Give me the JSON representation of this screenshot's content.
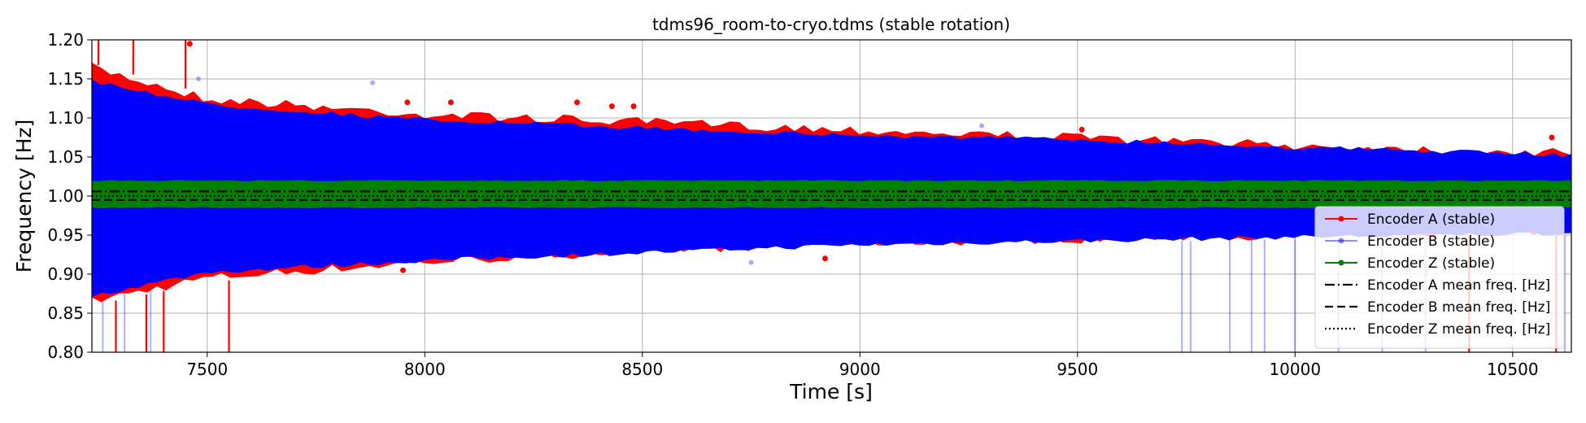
{
  "chart_data": {
    "type": "line",
    "title": "tdms96_room-to-cryo.tdms (stable rotation)",
    "xlabel": "Time [s]",
    "ylabel": "Frequency [Hz]",
    "xlim": [
      7235,
      10635
    ],
    "ylim": [
      0.8,
      1.2
    ],
    "xticks": [
      7500,
      8000,
      8500,
      9000,
      9500,
      10000,
      10500
    ],
    "yticks": [
      "0.80",
      "0.85",
      "0.90",
      "0.95",
      "1.00",
      "1.05",
      "1.10",
      "1.15",
      "1.20"
    ],
    "grid": true,
    "legend_position": "lower-right",
    "series": [
      {
        "name": "Encoder A (stable)",
        "color": "#ff0000",
        "style": "line-dot",
        "band_x": [
          7235,
          7500,
          8000,
          8500,
          9000,
          9500,
          10000,
          10635
        ],
        "band_upper": [
          1.17,
          1.13,
          1.11,
          1.1,
          1.09,
          1.08,
          1.07,
          1.06
        ],
        "band_lower": [
          0.86,
          0.89,
          0.91,
          0.925,
          0.935,
          0.94,
          0.945,
          0.95
        ],
        "spikes": [
          {
            "x": 7250,
            "y": 1.2
          },
          {
            "x": 7290,
            "y": 0.8
          },
          {
            "x": 7330,
            "y": 1.2
          },
          {
            "x": 7360,
            "y": 0.8
          },
          {
            "x": 7400,
            "y": 0.8
          },
          {
            "x": 7450,
            "y": 1.2
          },
          {
            "x": 7550,
            "y": 0.8
          },
          {
            "x": 10400,
            "y": 0.8
          },
          {
            "x": 10600,
            "y": 0.8
          }
        ],
        "outliers": [
          {
            "x": 7460,
            "y": 1.195
          },
          {
            "x": 7960,
            "y": 1.12
          },
          {
            "x": 8060,
            "y": 1.12
          },
          {
            "x": 8350,
            "y": 1.12
          },
          {
            "x": 8430,
            "y": 1.115
          },
          {
            "x": 8480,
            "y": 1.115
          },
          {
            "x": 7950,
            "y": 0.905
          },
          {
            "x": 8920,
            "y": 0.92
          },
          {
            "x": 9510,
            "y": 1.085
          },
          {
            "x": 10590,
            "y": 1.075
          }
        ]
      },
      {
        "name": "Encoder B (stable)",
        "color": "#0000ff",
        "style": "line-dot-translucent",
        "band_x": [
          7235,
          7500,
          8000,
          8500,
          9000,
          9500,
          10000,
          10635
        ],
        "band_upper": [
          1.15,
          1.12,
          1.1,
          1.09,
          1.08,
          1.075,
          1.065,
          1.055
        ],
        "band_lower": [
          0.87,
          0.9,
          0.915,
          0.925,
          0.935,
          0.94,
          0.945,
          0.95
        ],
        "spikes": [
          {
            "x": 7260,
            "y": 0.8
          },
          {
            "x": 7310,
            "y": 0.8
          },
          {
            "x": 7370,
            "y": 0.8
          },
          {
            "x": 9740,
            "y": 0.8
          },
          {
            "x": 9760,
            "y": 0.8
          },
          {
            "x": 9850,
            "y": 0.8
          },
          {
            "x": 9900,
            "y": 0.8
          },
          {
            "x": 9930,
            "y": 0.8
          },
          {
            "x": 10000,
            "y": 0.8
          },
          {
            "x": 10100,
            "y": 0.8
          },
          {
            "x": 10200,
            "y": 0.8
          },
          {
            "x": 10300,
            "y": 0.8
          },
          {
            "x": 10620,
            "y": 0.8
          }
        ],
        "outliers": [
          {
            "x": 7880,
            "y": 1.145
          },
          {
            "x": 7480,
            "y": 1.15
          },
          {
            "x": 9280,
            "y": 1.09
          },
          {
            "x": 8750,
            "y": 0.915
          }
        ]
      },
      {
        "name": "Encoder Z (stable)",
        "color": "#008000",
        "style": "line-dot",
        "band_x": [
          7235,
          10635
        ],
        "band_upper": [
          1.02,
          1.02
        ],
        "band_lower": [
          0.985,
          0.985
        ]
      },
      {
        "name": "Encoder A mean freq. [Hz]",
        "color": "#000000",
        "style": "dashdot",
        "value": 1.006
      },
      {
        "name": "Encoder B mean freq. [Hz]",
        "color": "#000000",
        "style": "dashed",
        "value": 0.995
      },
      {
        "name": "Encoder Z mean freq. [Hz]",
        "color": "#000000",
        "style": "dotted",
        "value": 1.0
      }
    ]
  }
}
